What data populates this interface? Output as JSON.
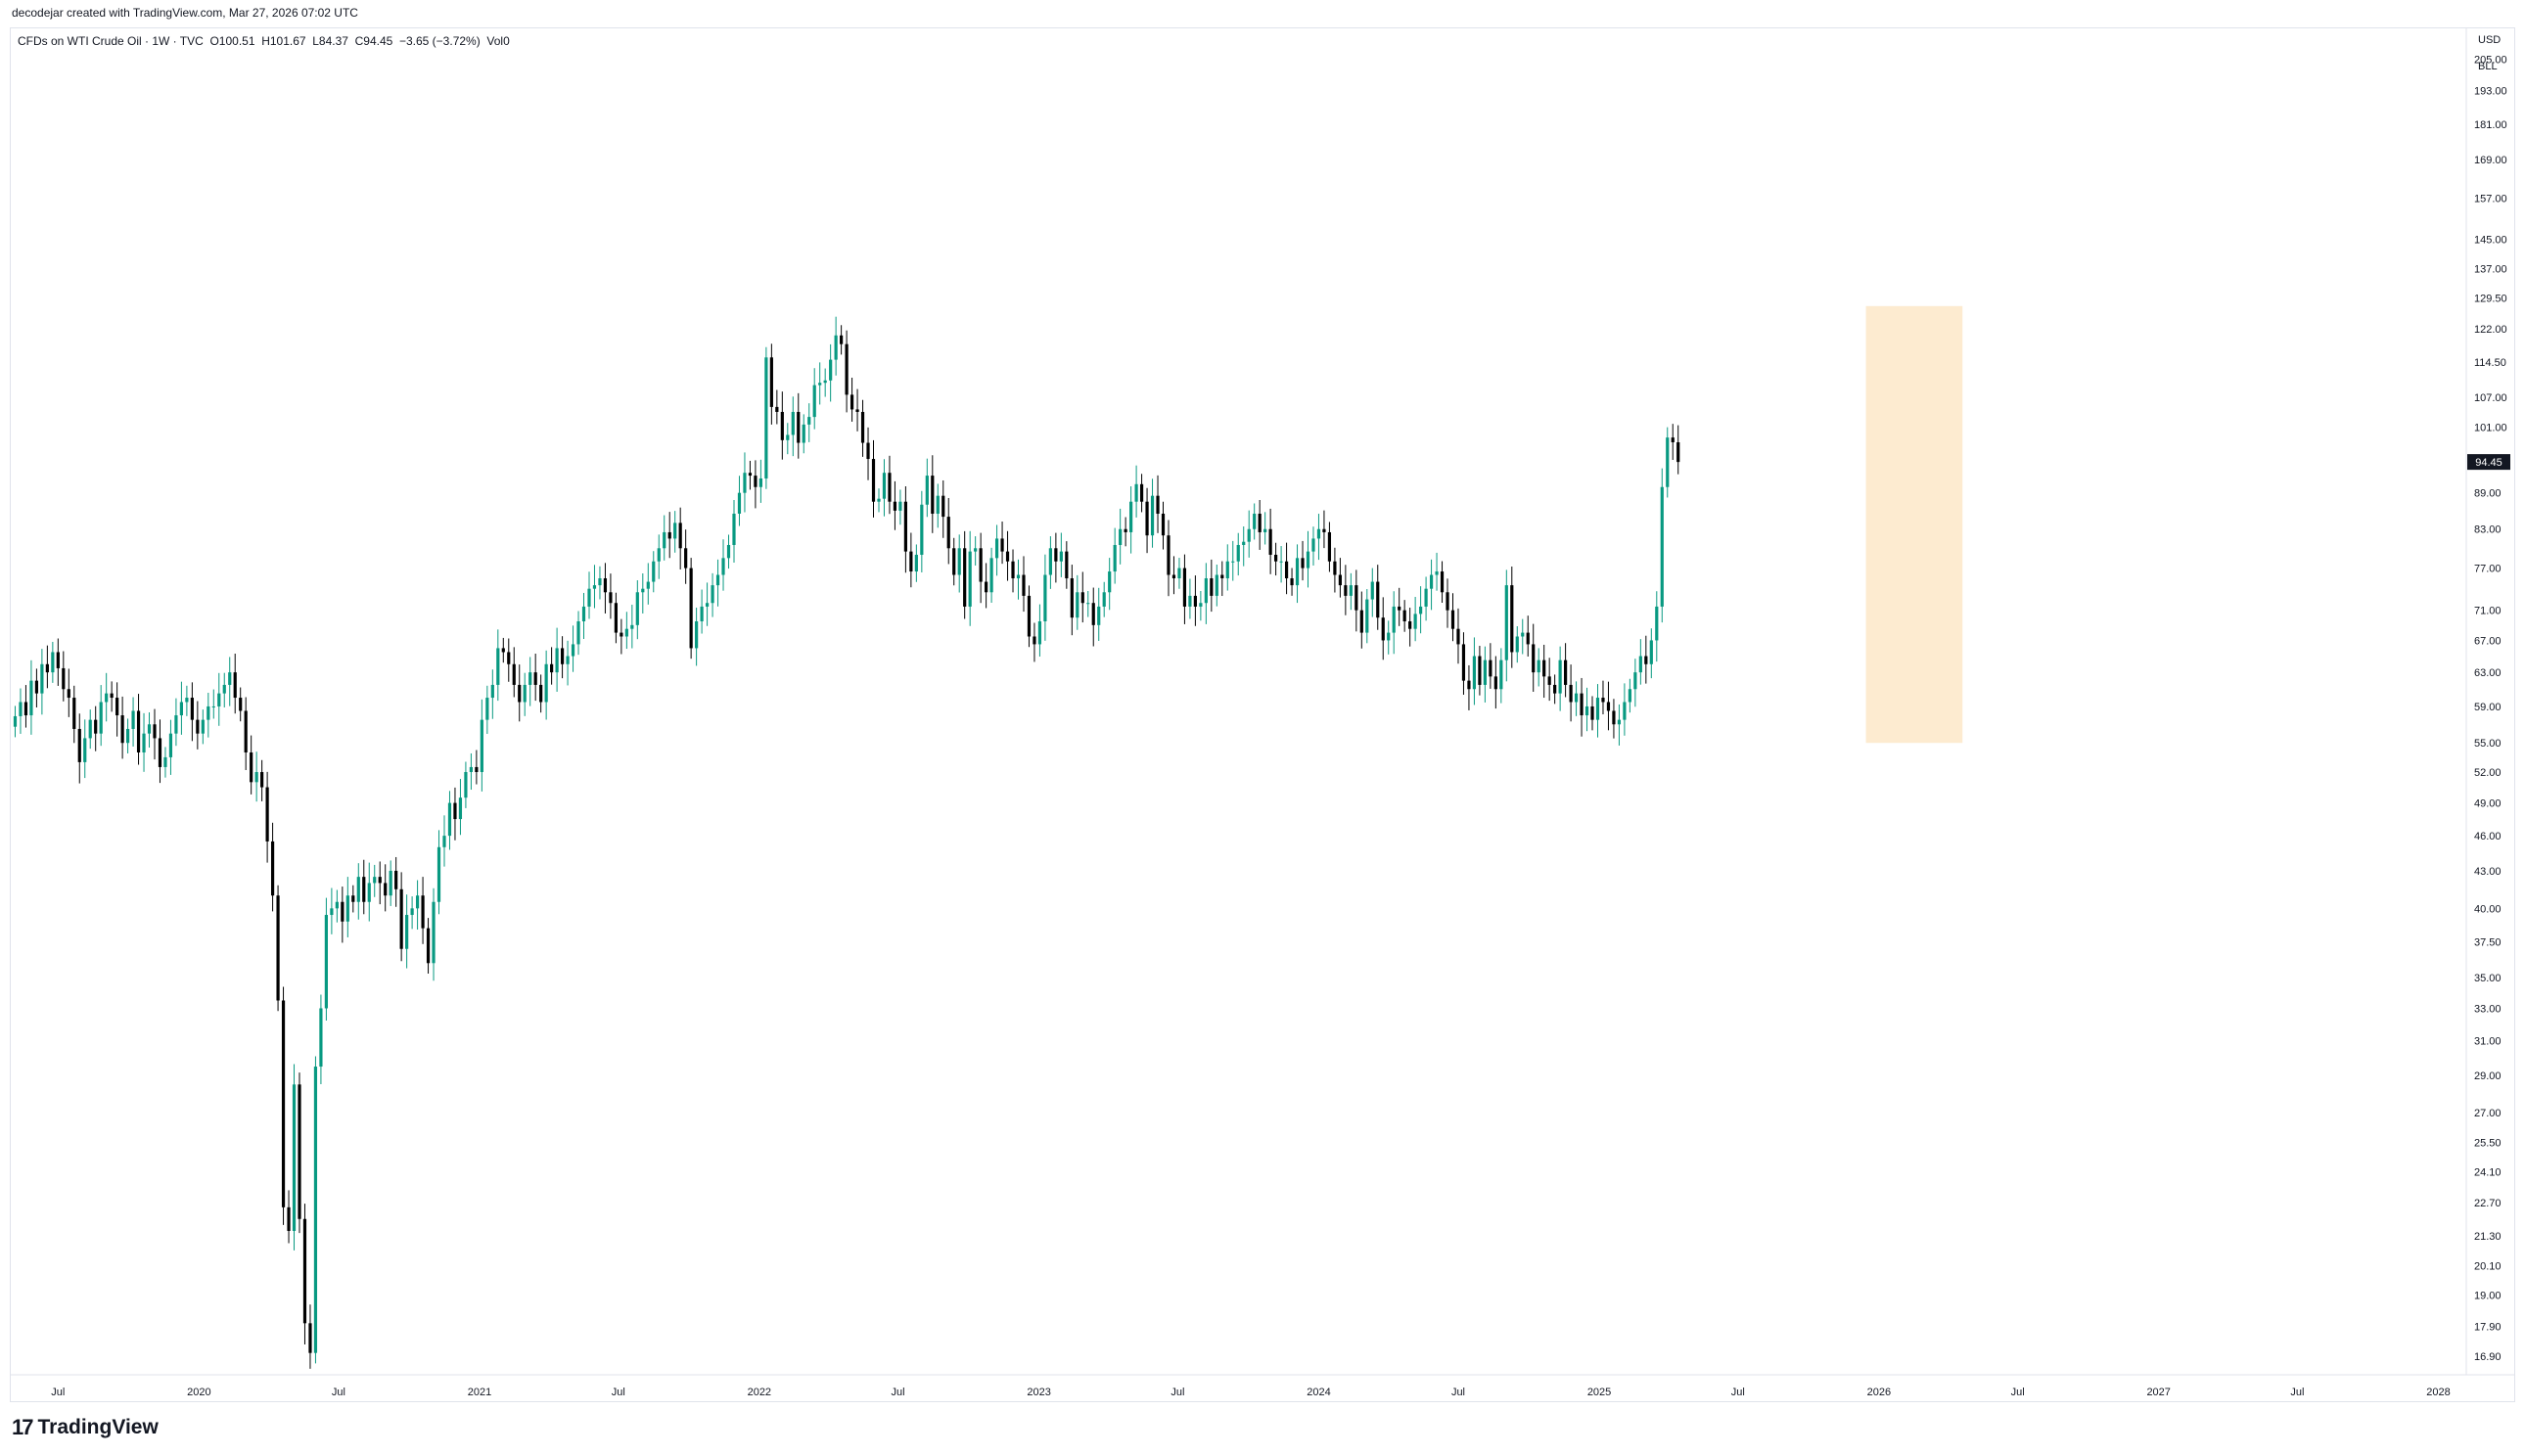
{
  "header": {
    "attribution": "decodejar created with TradingView.com, Mar 27, 2026 07:02 UTC"
  },
  "legend": {
    "symbol": "CFDs on WTI Crude Oil · 1W · TVC",
    "open": "O100.51",
    "high": "H101.67",
    "low": "L84.37",
    "close": "C94.45",
    "change": "−3.65 (−3.72%)",
    "volume": "Vol0"
  },
  "price_axis": {
    "currency": "USD",
    "unit": "BLL",
    "last_price_label": "94.45",
    "last_price_bg": "#131722"
  },
  "brand": {
    "logo_mark": "17",
    "name": "TradingView"
  },
  "colors": {
    "up": "#089981",
    "down": "#000000",
    "highlight": "#fdebd0",
    "grid_border": "#e0e3eb"
  },
  "chart_data": {
    "type": "candlestick",
    "scale": "log",
    "y_ticks": [
      205.0,
      193.0,
      181.0,
      169.0,
      157.0,
      145.0,
      137.0,
      129.5,
      122.0,
      114.5,
      107.0,
      101.0,
      89.0,
      83.0,
      77.0,
      71.0,
      67.0,
      63.0,
      59.0,
      55.0,
      52.0,
      49.0,
      46.0,
      43.0,
      40.0,
      37.5,
      35.0,
      33.0,
      31.0,
      29.0,
      27.0,
      25.5,
      24.1,
      22.7,
      21.3,
      20.1,
      19.0,
      17.9,
      16.9
    ],
    "y_tick_labels": [
      "205.00",
      "193.00",
      "181.00",
      "169.00",
      "157.00",
      "145.00",
      "137.00",
      "129.50",
      "122.00",
      "114.50",
      "107.00",
      "101.00",
      "89.00",
      "83.00",
      "77.00",
      "71.00",
      "67.00",
      "63.00",
      "59.00",
      "55.00",
      "52.00",
      "49.00",
      "46.00",
      "43.00",
      "40.00",
      "37.50",
      "35.00",
      "33.00",
      "31.00",
      "29.00",
      "27.00",
      "25.50",
      "24.10",
      "22.70",
      "21.30",
      "20.10",
      "19.00",
      "17.90",
      "16.90"
    ],
    "x_ticks": [
      {
        "date": "2019-07-01",
        "label": "Jul"
      },
      {
        "date": "2020-01-01",
        "label": "2020"
      },
      {
        "date": "2020-07-01",
        "label": "Jul"
      },
      {
        "date": "2021-01-01",
        "label": "2021"
      },
      {
        "date": "2021-07-01",
        "label": "Jul"
      },
      {
        "date": "2022-01-01",
        "label": "2022"
      },
      {
        "date": "2022-07-01",
        "label": "Jul"
      },
      {
        "date": "2023-01-01",
        "label": "2023"
      },
      {
        "date": "2023-07-01",
        "label": "Jul"
      },
      {
        "date": "2024-01-01",
        "label": "2024"
      },
      {
        "date": "2024-07-01",
        "label": "Jul"
      },
      {
        "date": "2025-01-01",
        "label": "2025"
      },
      {
        "date": "2025-07-01",
        "label": "Jul"
      },
      {
        "date": "2026-01-01",
        "label": "2026"
      },
      {
        "date": "2026-07-01",
        "label": "Jul"
      },
      {
        "date": "2027-01-01",
        "label": "2027"
      },
      {
        "date": "2027-07-01",
        "label": "Jul"
      },
      {
        "date": "2028-01-01",
        "label": "2028"
      }
    ],
    "x_range": [
      "2019-04-29",
      "2028-01-31"
    ],
    "y_range": [
      16.3,
      218
    ],
    "highlight": {
      "x_from": "2025-12-15",
      "x_to": "2026-04-20",
      "y_from": 55.0,
      "y_to": 127.5
    },
    "closes": [
      [
        57.9,
        59.5,
        58.0,
        62.0,
        60.5,
        64.0,
        63.0,
        65.5,
        63.5,
        61.0,
        60.0,
        56.5,
        53.0,
        55.5,
        57.5,
        56.0,
        59.5,
        60.5,
        60.0,
        58.0,
        55.0,
        56.5,
        58.5,
        54.0,
        56.0,
        57.0,
        55.5,
        52.5,
        53.5,
        56.0,
        58.0,
        59.5,
        60.0,
        57.5,
        56.0,
        57.5,
        59.0,
        59.0,
        60.5,
        61.5,
        63.0,
        60.0,
        58.5,
        54.0,
        51.0,
        52.0,
        50.5,
        45.5,
        41.0,
        33.5,
        22.5,
        21.5,
        28.5,
        22.0,
        18.0,
        17.0,
        29.5,
        33.0,
        39.5,
        40.0,
        40.5,
        39.0,
        41.0,
        40.5,
        42.5,
        40.5,
        42.0,
        42.5,
        42.0,
        41.0,
        43.0,
        41.5,
        37.0,
        39.5,
        40.0,
        41.0,
        38.5,
        36.0,
        40.5,
        45.0,
        46.0,
        49.0,
        47.5,
        49.5,
        52.0,
        52.5,
        52.0,
        57.5,
        60.0,
        61.5,
        66.0,
        65.5,
        64.0,
        61.5,
        59.5,
        61.5,
        63.0,
        61.5,
        59.5,
        64.0,
        63.0,
        66.0,
        64.0,
        65.0,
        66.5,
        69.5,
        71.5,
        74.0,
        74.5,
        75.5,
        73.5,
        72.0,
        68.0,
        67.5,
        68.5,
        69.0,
        73.5,
        74.0,
        75.0,
        78.0,
        80.0,
        82.5,
        81.5,
        84.0,
        80.0,
        77.0,
        66.0,
        69.5,
        71.5,
        72.0,
        74.5,
        76.0,
        78.5,
        80.5,
        85.5,
        89.0,
        92.5,
        92.0,
        90.0,
        91.5,
        115.5,
        105.0,
        104.0,
        98.5,
        99.5,
        104.0,
        98.0,
        101.5,
        103.0,
        109.5,
        110.0,
        110.5,
        115.0,
        120.5,
        118.5,
        107.5,
        104.5,
        104.0,
        98.0,
        95.0,
        87.5,
        88.0,
        92.5,
        87.5,
        86.0,
        87.5,
        79.5,
        76.5,
        79.0,
        87.0,
        92.0,
        85.5,
        88.5,
        85.0,
        80.0,
        76.0,
        80.0,
        71.5,
        79.5,
        80.0,
        75.0,
        73.5,
        78.5,
        81.5,
        79.5,
        78.0,
        75.5,
        76.0,
        73.0,
        67.5,
        66.5,
        69.5,
        76.0,
        80.0,
        78.0,
        79.5,
        75.5,
        70.0,
        73.5,
        72.0,
        72.0,
        69.0,
        71.5,
        73.5,
        76.5,
        80.5,
        83.0,
        82.5,
        87.5,
        90.5,
        87.5,
        82.0,
        88.5,
        85.5,
        82.0,
        76.0,
        75.5,
        77.0,
        71.5,
        73.0,
        71.5,
        72.0,
        75.5,
        73.0,
        76.0,
        75.5,
        78.0,
        78.0,
        80.5,
        81.0,
        83.0,
        85.5,
        82.5,
        83.0,
        79.0,
        78.0,
        78.0,
        75.5,
        74.5,
        78.5,
        77.0,
        79.5,
        81.5,
        83.0,
        82.5,
        78.0,
        76.0,
        74.5,
        73.0,
        74.5,
        71.0,
        68.0,
        72.5,
        75.0,
        70.0,
        67.0,
        68.0,
        71.5,
        71.0,
        69.5,
        68.5,
        70.5,
        71.5,
        74.0,
        76.0,
        76.5,
        73.5,
        71.0,
        68.5,
        66.5,
        62.0,
        61.0,
        65.0,
        61.5,
        64.5,
        62.5,
        61.0,
        64.5,
        74.5,
        65.5,
        67.5,
        68.0,
        66.5,
        63.0,
        64.5,
        62.5,
        61.5,
        60.5,
        64.5,
        61.5,
        59.5,
        60.5,
        58.0,
        59.0,
        57.5,
        60.0,
        59.5,
        58.5,
        57.0,
        57.5,
        59.5,
        61.0,
        63.0,
        65.0,
        64.0,
        67.0,
        71.5,
        90.0,
        99.0,
        98.1,
        94.45
      ]
    ]
  }
}
